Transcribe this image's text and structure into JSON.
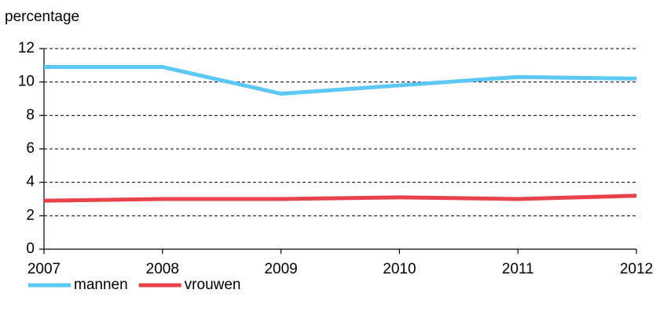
{
  "chart_data": {
    "type": "line",
    "y_label": "percentage",
    "x": [
      2007,
      2008,
      2009,
      2010,
      2011,
      2012
    ],
    "xlim": [
      2007,
      2012
    ],
    "xticks": [
      2007,
      2008,
      2009,
      2010,
      2011,
      2012
    ],
    "ylim": [
      0,
      12
    ],
    "yticks": [
      0,
      2,
      4,
      6,
      8,
      10,
      12
    ],
    "grid": true,
    "series": [
      {
        "name": "mannen",
        "color": "#5bc8f5",
        "values": [
          10.9,
          10.9,
          9.3,
          9.8,
          10.3,
          10.2
        ]
      },
      {
        "name": "vrouwen",
        "color": "#e8434a",
        "values": [
          2.9,
          3.0,
          3.0,
          3.1,
          3.0,
          3.2
        ]
      }
    ]
  }
}
